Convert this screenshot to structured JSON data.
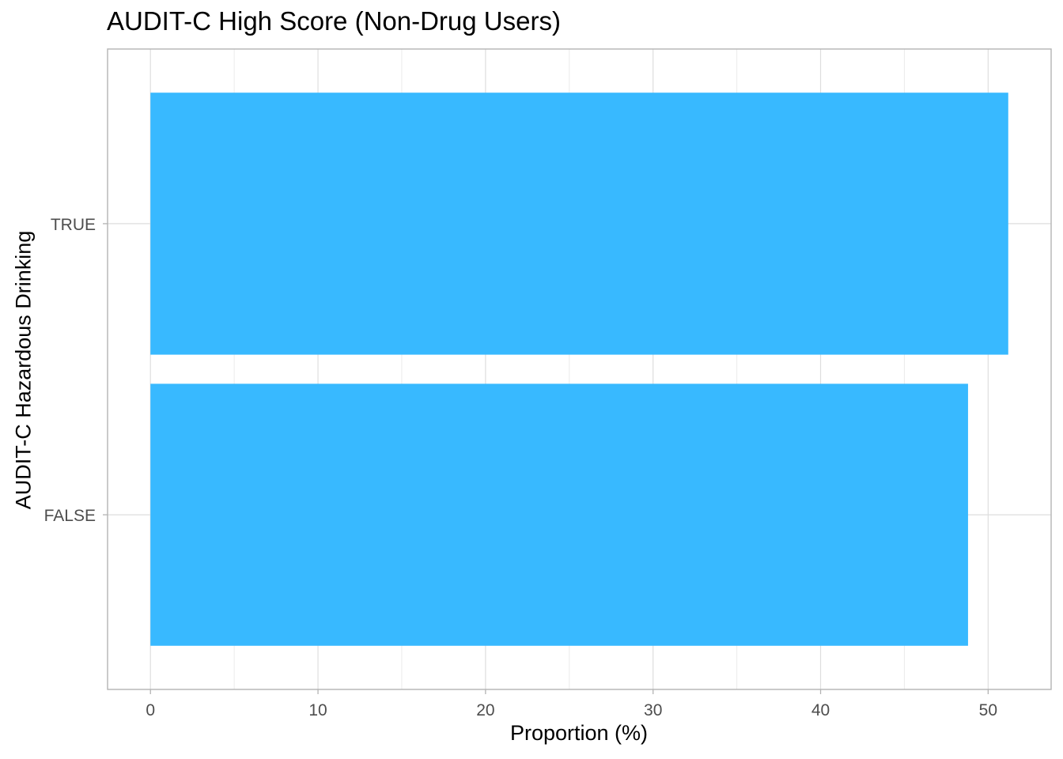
{
  "chart_data": {
    "type": "bar",
    "orientation": "horizontal",
    "title": "AUDIT-C High Score (Non-Drug Users)",
    "xlabel": "Proportion (%)",
    "ylabel": "AUDIT-C Hazardous Drinking",
    "categories": [
      "FALSE",
      "TRUE"
    ],
    "values": [
      48.8,
      51.2
    ],
    "xlim": [
      -2.56,
      53.76
    ],
    "xticks": [
      0,
      10,
      20,
      30,
      40,
      50
    ],
    "grid": true,
    "legend": "none",
    "bar_color": "#38B9FF"
  }
}
